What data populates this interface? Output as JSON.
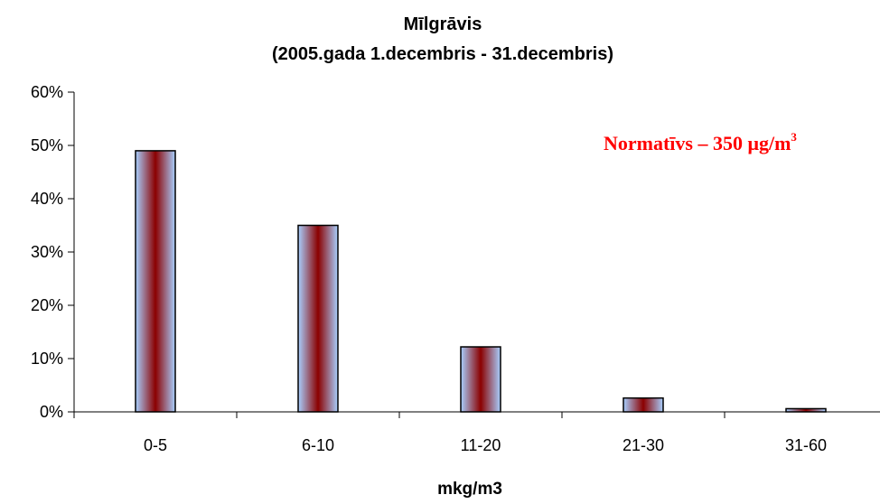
{
  "chart_data": {
    "type": "bar",
    "title": "Mīlgrāvis",
    "subtitle": "(2005.gada 1.decembris - 31.decembris)",
    "xlabel": "mkg/m3",
    "ylabel": "",
    "categories": [
      "0-5",
      "6-10",
      "11-20",
      "21-30",
      "31-60"
    ],
    "values": [
      49,
      35,
      12.2,
      2.6,
      0.6
    ],
    "value_unit": "%",
    "ylim": [
      0,
      60
    ],
    "yticks": [
      0,
      10,
      20,
      30,
      40,
      50,
      60
    ],
    "ytick_labels": [
      "0%",
      "10%",
      "20%",
      "30%",
      "40%",
      "50%",
      "60%"
    ],
    "grid": false,
    "legend": "none",
    "annotation": {
      "prefix": "Normatīvs – 350 ",
      "mu": "μ",
      "unit": "g/m",
      "sup": "3",
      "color": "#ff0000"
    },
    "bar_gradient": [
      "#a8d0ff",
      "#8b0000"
    ]
  }
}
